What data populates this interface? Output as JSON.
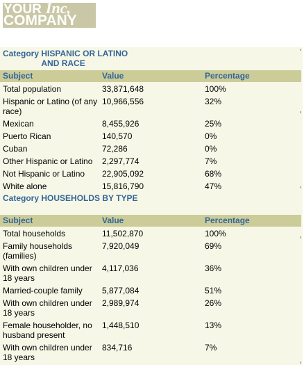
{
  "logo": {
    "line1": "YOUR",
    "line1_italic": "Inc,",
    "line2": "COMPANY"
  },
  "sections": [
    {
      "category_label": "Category",
      "category_value": "HISPANIC OR LATINO AND RACE",
      "headers": [
        "Subject",
        "Value",
        "Percentage"
      ],
      "rows": [
        [
          "Total population",
          "33,871,648",
          "100%"
        ],
        [
          "Hispanic or Latino (of any race)",
          "10,966,556",
          "32%"
        ],
        [
          "Mexican",
          "8,455,926",
          "25%"
        ],
        [
          "Puerto Rican",
          "140,570",
          "0%"
        ],
        [
          "Cuban",
          "72,286",
          "0%"
        ],
        [
          "Other Hispanic or Latino",
          "2,297,774",
          "7%"
        ],
        [
          "Not Hispanic or Latino",
          "22,905,092",
          "68%"
        ],
        [
          "White alone",
          "15,816,790",
          "47%"
        ]
      ]
    },
    {
      "category_label": "Category",
      "category_value": "HOUSEHOLDS BY TYPE",
      "headers": [
        "Subject",
        "Value",
        "Percentage"
      ],
      "rows": [
        [
          "Total households",
          "11,502,870",
          "100%"
        ],
        [
          "Family households (families)",
          "7,920,049",
          "69%"
        ],
        [
          "With own children under 18 years",
          "4,117,036",
          "36%"
        ],
        [
          "Married-couple family",
          "5,877,084",
          "51%"
        ],
        [
          "With own children under 18 years",
          "2,989,974",
          "26%"
        ],
        [
          "Female householder, no husband present",
          "1,448,510",
          "13%"
        ],
        [
          "With own children under 18 years",
          "834,716",
          "7%"
        ]
      ]
    }
  ]
}
